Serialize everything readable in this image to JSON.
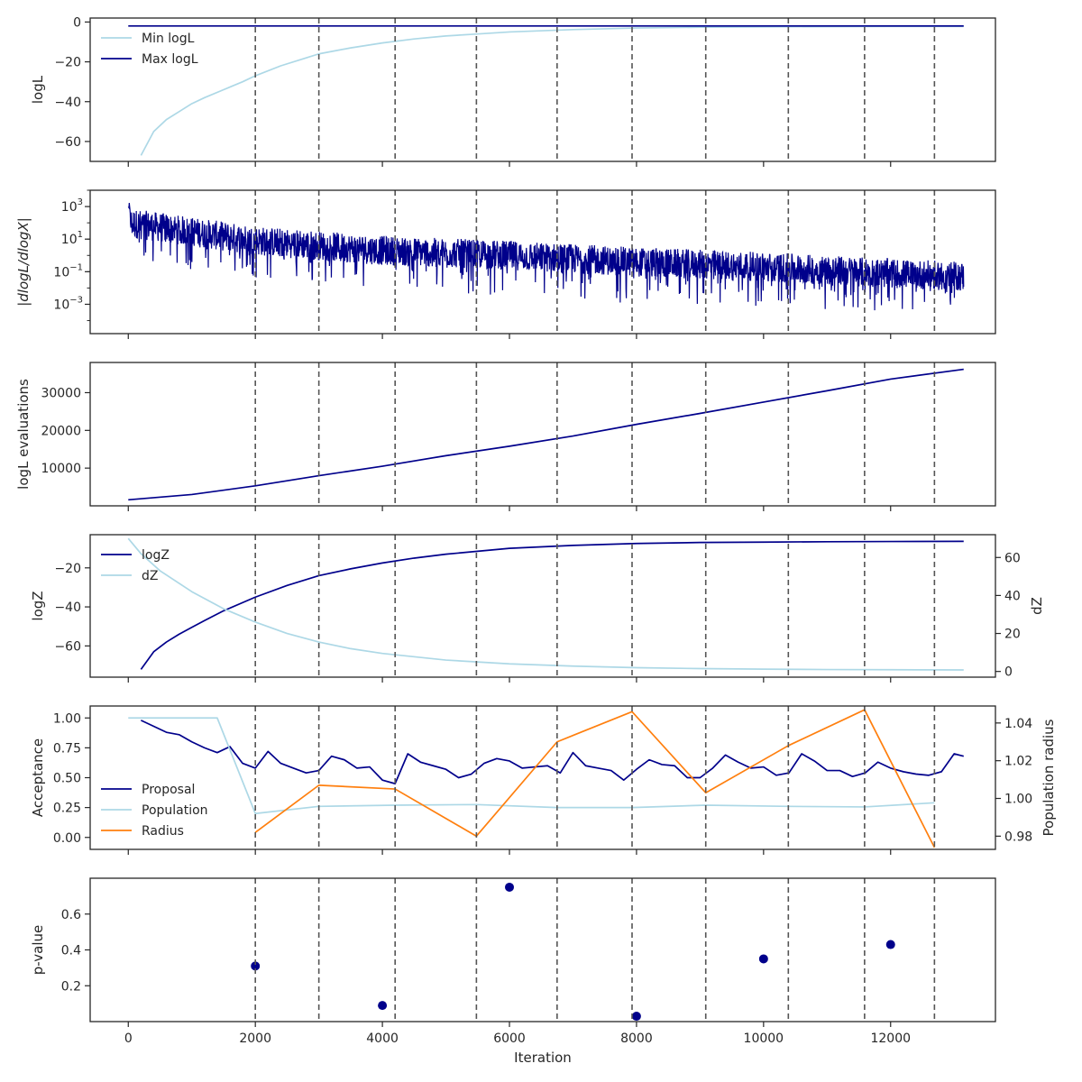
{
  "chart_data": {
    "shared_x": {
      "label": "Iteration",
      "range": [
        -600,
        13650
      ],
      "ticks": [
        0,
        2000,
        4000,
        6000,
        8000,
        10000,
        12000
      ],
      "tick_labels": [
        "0",
        "2000",
        "4000",
        "6000",
        "8000",
        "10000",
        "12000"
      ]
    },
    "checkpoint_iterations": [
      2000,
      3000,
      4200,
      5480,
      6750,
      7930,
      9090,
      10390,
      11590,
      12690
    ],
    "panels": [
      {
        "id": "logl",
        "type": "line",
        "ylabel": "logL",
        "ylim": [
          -70,
          2
        ],
        "yticks": [
          0,
          -20,
          -40,
          -60
        ],
        "ytick_labels": [
          "0",
          "−20",
          "−40",
          "−60"
        ],
        "legend": "top-left",
        "series": [
          {
            "name": "Min logL",
            "color": "#add8e6",
            "x": [
              200,
              400,
              600,
              800,
              1000,
              1200,
              1500,
              1800,
              2000,
              2400,
              2800,
              3000,
              3500,
              4000,
              4500,
              5000,
              5500,
              6000,
              7000,
              8000,
              9000,
              10000,
              11000,
              12000,
              13150
            ],
            "y": [
              -67,
              -55,
              -49,
              -45,
              -41,
              -38,
              -34,
              -30,
              -27,
              -22,
              -18,
              -16,
              -13,
              -10.5,
              -8.5,
              -7,
              -6,
              -5,
              -3.8,
              -3,
              -2.6,
              -2.4,
              -2.3,
              -2.2,
              -2.2
            ]
          },
          {
            "name": "Max logL",
            "color": "#00008b",
            "x": [
              0,
              13150
            ],
            "y": [
              -2,
              -2
            ]
          }
        ]
      },
      {
        "id": "dlogl",
        "type": "line",
        "ylabel": "|dlogL/dlogX|",
        "yscale": "log",
        "ylim_exp": [
          -4.8,
          4.0
        ],
        "ytick_exps": [
          3,
          1,
          -1,
          -3
        ],
        "ytick_labels": [
          "10",
          "10",
          "10",
          "10"
        ],
        "ytick_sups": [
          "3",
          "1",
          "−1",
          "−3"
        ],
        "series": [
          {
            "name": "",
            "color": "#00008b",
            "envelope_x": [
              0,
              2000,
              4000,
              6000,
              8000,
              10000,
              12000,
              13150
            ],
            "envelope_upper_exp": [
              2.9,
              1.8,
              1.2,
              0.9,
              0.5,
              0.2,
              -0.2,
              -0.4
            ],
            "envelope_lower_exp": [
              -0.5,
              -1.4,
              -2.0,
              -2.5,
              -3.0,
              -3.2,
              -3.4,
              -3.3
            ]
          }
        ]
      },
      {
        "id": "evals",
        "type": "line",
        "ylabel": "logL evaluations",
        "ylim": [
          0,
          38000
        ],
        "yticks": [
          10000,
          20000,
          30000
        ],
        "ytick_labels": [
          "10000",
          "20000",
          "30000"
        ],
        "series": [
          {
            "name": "",
            "color": "#00008b",
            "x": [
              0,
              1000,
              2000,
              3000,
              4000,
              5000,
              6000,
              7000,
              8000,
              9000,
              10000,
              11000,
              12000,
              13150
            ],
            "y": [
              1600,
              3000,
              5300,
              8000,
              10500,
              13300,
              15800,
              18500,
              21600,
              24500,
              27500,
              30500,
              33600,
              36200
            ]
          }
        ]
      },
      {
        "id": "logz",
        "type": "line",
        "ylabel": "logZ",
        "ylim": [
          -76,
          -3
        ],
        "yticks": [
          -20,
          -40,
          -60
        ],
        "ytick_labels": [
          "−20",
          "−40",
          "−60"
        ],
        "y2label": "dZ",
        "y2lim": [
          -3,
          72
        ],
        "y2ticks": [
          0,
          20,
          40,
          60
        ],
        "y2tick_labels": [
          "0",
          "20",
          "40",
          "60"
        ],
        "legend": "top-left",
        "series": [
          {
            "name": "logZ",
            "color": "#00008b",
            "axis": "left",
            "x": [
              200,
              400,
              600,
              800,
              1000,
              1200,
              1500,
              2000,
              2500,
              3000,
              3500,
              4000,
              4500,
              5000,
              6000,
              7000,
              8000,
              9000,
              10000,
              11000,
              12000,
              13150
            ],
            "y": [
              -72,
              -63,
              -58,
              -54,
              -50.5,
              -47,
              -42,
              -35,
              -29,
              -24,
              -20.5,
              -17.5,
              -15,
              -13,
              -10,
              -8.5,
              -7.5,
              -7,
              -6.8,
              -6.6,
              -6.5,
              -6.4
            ]
          },
          {
            "name": "dZ",
            "color": "#add8e6",
            "axis": "right",
            "x": [
              0,
              200,
              500,
              1000,
              1500,
              2000,
              2500,
              3000,
              3500,
              4000,
              5000,
              6000,
              7000,
              8000,
              9000,
              10000,
              11000,
              12000,
              13150
            ],
            "y": [
              70,
              62,
              53,
              42,
              33,
              26,
              20,
              15.5,
              12,
              9.5,
              6,
              4,
              2.8,
              2,
              1.5,
              1.2,
              1.0,
              0.9,
              0.8
            ]
          }
        ]
      },
      {
        "id": "acceptance",
        "type": "line",
        "ylabel": "Acceptance",
        "ylim": [
          -0.1,
          1.1
        ],
        "yticks": [
          1.0,
          0.75,
          0.5,
          0.25,
          0.0
        ],
        "ytick_labels": [
          "1.00",
          "0.75",
          "0.50",
          "0.25",
          "0.00"
        ],
        "y2label": "Population radius",
        "y2lim": [
          0.973,
          1.049
        ],
        "y2ticks": [
          1.04,
          1.02,
          1.0,
          0.98
        ],
        "y2tick_labels": [
          "1.04",
          "1.02",
          "1.00",
          "0.98"
        ],
        "legend": "lower-left",
        "series": [
          {
            "name": "Proposal",
            "color": "#00008b",
            "axis": "left",
            "x": [
              200,
              400,
              600,
              800,
              1000,
              1200,
              1400,
              1600,
              1800,
              2000,
              2200,
              2400,
              2600,
              2800,
              3000,
              3200,
              3400,
              3600,
              3800,
              4000,
              4200,
              4400,
              4600,
              4800,
              5000,
              5200,
              5400,
              5600,
              5800,
              6000,
              6200,
              6400,
              6600,
              6800,
              7000,
              7200,
              7400,
              7600,
              7800,
              8000,
              8200,
              8400,
              8600,
              8800,
              9000,
              9200,
              9400,
              9600,
              9800,
              10000,
              10200,
              10400,
              10600,
              10800,
              11000,
              11200,
              11400,
              11600,
              11800,
              12000,
              12200,
              12400,
              12600,
              12800,
              13000,
              13150
            ],
            "y": [
              0.98,
              0.93,
              0.88,
              0.86,
              0.8,
              0.75,
              0.71,
              0.76,
              0.62,
              0.58,
              0.72,
              0.62,
              0.58,
              0.54,
              0.56,
              0.68,
              0.65,
              0.58,
              0.59,
              0.48,
              0.45,
              0.7,
              0.63,
              0.6,
              0.57,
              0.5,
              0.53,
              0.62,
              0.66,
              0.64,
              0.58,
              0.59,
              0.6,
              0.54,
              0.71,
              0.6,
              0.58,
              0.56,
              0.48,
              0.57,
              0.65,
              0.61,
              0.6,
              0.5,
              0.5,
              0.58,
              0.69,
              0.63,
              0.58,
              0.59,
              0.52,
              0.54,
              0.7,
              0.64,
              0.56,
              0.56,
              0.51,
              0.54,
              0.63,
              0.58,
              0.55,
              0.53,
              0.52,
              0.55,
              0.7,
              0.68
            ]
          },
          {
            "name": "Population",
            "color": "#add8e6",
            "axis": "left",
            "x": [
              0,
              1400,
              2000,
              3000,
              4200,
              5480,
              6750,
              7930,
              9090,
              10390,
              11590,
              12690
            ],
            "y": [
              1.0,
              1.0,
              0.2,
              0.26,
              0.27,
              0.275,
              0.25,
              0.25,
              0.27,
              0.26,
              0.255,
              0.29
            ]
          },
          {
            "name": "Radius",
            "color": "#ff7f0e",
            "axis": "right",
            "x": [
              2000,
              3000,
              4200,
              5480,
              6750,
              7930,
              9090,
              10390,
              11590,
              12690
            ],
            "y": [
              0.982,
              1.007,
              1.005,
              0.98,
              1.03,
              1.046,
              1.003,
              1.028,
              1.047,
              0.974
            ]
          }
        ]
      },
      {
        "id": "pvalue",
        "type": "scatter",
        "ylabel": "p-value",
        "ylim": [
          0.0,
          0.8
        ],
        "yticks": [
          0.6,
          0.4,
          0.2
        ],
        "ytick_labels": [
          "0.6",
          "0.4",
          "0.2"
        ],
        "series": [
          {
            "name": "",
            "color": "#00008b",
            "x": [
              2000,
              4000,
              6000,
              8000,
              10000,
              12000
            ],
            "y": [
              0.31,
              0.09,
              0.75,
              0.03,
              0.35,
              0.43
            ]
          }
        ]
      }
    ]
  }
}
